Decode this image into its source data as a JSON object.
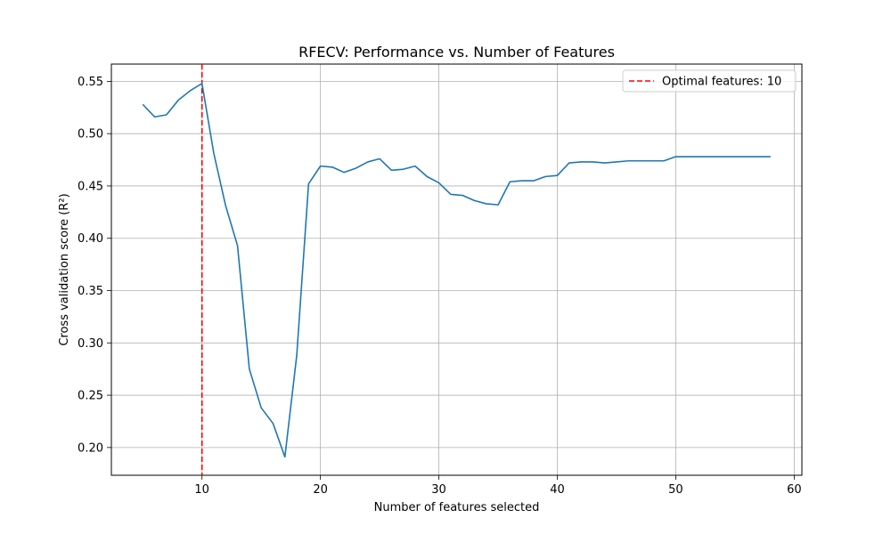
{
  "chart_data": {
    "type": "line",
    "title": "RFECV: Performance vs. Number of Features",
    "xlabel": "Number of features selected",
    "ylabel": "Cross validation score (R²)",
    "xlim": [
      2.35,
      60.65
    ],
    "ylim": [
      0.1735,
      0.5665
    ],
    "grid": true,
    "legend_position": "top-right",
    "x_ticks": [
      10,
      20,
      30,
      40,
      50,
      60
    ],
    "y_ticks": [
      0.2,
      0.25,
      0.3,
      0.35,
      0.4,
      0.45,
      0.5,
      0.55
    ],
    "x_tick_labels": [
      "10",
      "20",
      "30",
      "40",
      "50",
      "60"
    ],
    "y_tick_labels": [
      "0.20",
      "0.25",
      "0.30",
      "0.35",
      "0.40",
      "0.45",
      "0.50",
      "0.55"
    ],
    "series": [
      {
        "color": "#1f77b4",
        "x": [
          5,
          6,
          7,
          8,
          9,
          10,
          11,
          12,
          13,
          14,
          15,
          16,
          17,
          18,
          19,
          20,
          21,
          22,
          23,
          24,
          25,
          26,
          27,
          28,
          29,
          30,
          31,
          32,
          33,
          34,
          35,
          36,
          37,
          38,
          39,
          40,
          41,
          42,
          43,
          44,
          45,
          46,
          47,
          48,
          49,
          50,
          51,
          52,
          53,
          54,
          55,
          56,
          57,
          58
        ],
        "y": [
          0.528,
          0.516,
          0.518,
          0.532,
          0.541,
          0.548,
          0.481,
          0.431,
          0.393,
          0.275,
          0.238,
          0.223,
          0.191,
          0.288,
          0.452,
          0.469,
          0.468,
          0.463,
          0.467,
          0.473,
          0.476,
          0.465,
          0.466,
          0.469,
          0.459,
          0.453,
          0.442,
          0.441,
          0.436,
          0.433,
          0.432,
          0.454,
          0.455,
          0.455,
          0.459,
          0.46,
          0.472,
          0.473,
          0.473,
          0.472,
          0.473,
          0.474,
          0.474,
          0.474,
          0.474,
          0.478,
          0.478,
          0.478,
          0.478,
          0.478,
          0.478,
          0.478,
          0.478,
          0.478
        ]
      }
    ],
    "reference_line": {
      "orientation": "vertical",
      "x": 10,
      "color": "#ff0000",
      "style": "dashed",
      "label": "Optimal features: 10"
    }
  }
}
